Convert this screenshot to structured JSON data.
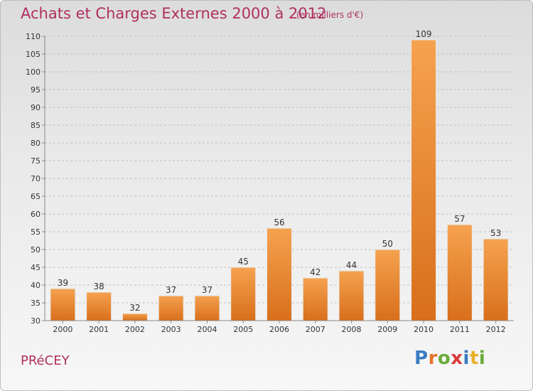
{
  "header": {
    "title": "Achats et Charges Externes 2000 à 2012",
    "subtitle": "(en milliers d'€)"
  },
  "footer": {
    "place": "PRéCEY",
    "logo_letters": [
      "P",
      "r",
      "o",
      "x",
      "i",
      "t",
      "i"
    ],
    "logo_colors": [
      "#3a7cc1",
      "#e8732a",
      "#6aab3a",
      "#d93a3a",
      "#3a7cc1",
      "#e8b02a",
      "#6aab3a"
    ]
  },
  "colors": {
    "bar_top": "#f5a24f",
    "bar_bottom": "#d86f1c",
    "grid": "#c0c0c0",
    "axis": "#888888",
    "title": "#b03060"
  },
  "chart_data": {
    "type": "bar",
    "title": "Achats et Charges Externes 2000 à 2012",
    "subtitle": "(en milliers d'€)",
    "xlabel": "",
    "ylabel": "",
    "categories": [
      "2000",
      "2001",
      "2002",
      "2003",
      "2004",
      "2005",
      "2006",
      "2007",
      "2008",
      "2009",
      "2010",
      "2011",
      "2012"
    ],
    "values": [
      39,
      38,
      32,
      37,
      37,
      45,
      56,
      42,
      44,
      50,
      109,
      57,
      53
    ],
    "ylim": [
      30,
      110
    ],
    "yticks": [
      30,
      35,
      40,
      45,
      50,
      55,
      60,
      65,
      70,
      75,
      80,
      85,
      90,
      95,
      100,
      105,
      110
    ],
    "grid": true,
    "data_labels": true
  }
}
